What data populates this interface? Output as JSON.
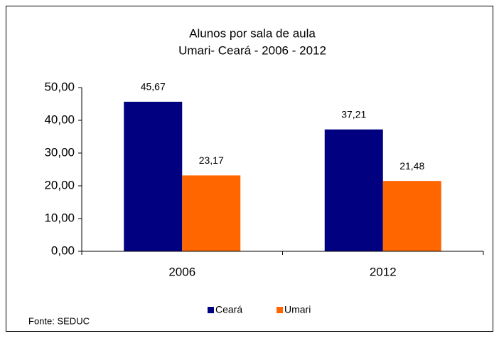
{
  "chart_data": {
    "type": "bar",
    "title": "Alunos por sala de aula",
    "subtitle": "Umari- Ceará - 2006 - 2012",
    "categories": [
      "2006",
      "2012"
    ],
    "series": [
      {
        "name": "Ceará",
        "color": "#000080",
        "values": [
          45.67,
          37.21
        ],
        "value_labels": [
          "45,67",
          "37,21"
        ]
      },
      {
        "name": "Umari",
        "color": "#ff6600",
        "values": [
          23.17,
          21.48
        ],
        "value_labels": [
          "23,17",
          "21,48"
        ]
      }
    ],
    "ylim": [
      0,
      50
    ],
    "yticks": [
      {
        "value": 0,
        "label": "0,00"
      },
      {
        "value": 10,
        "label": "10,00"
      },
      {
        "value": 20,
        "label": "20,00"
      },
      {
        "value": 30,
        "label": "30,00"
      },
      {
        "value": 40,
        "label": "40,00"
      },
      {
        "value": 50,
        "label": "50,00"
      }
    ],
    "grid": false,
    "legend": "bottom",
    "source": "Fonte: SEDUC"
  }
}
